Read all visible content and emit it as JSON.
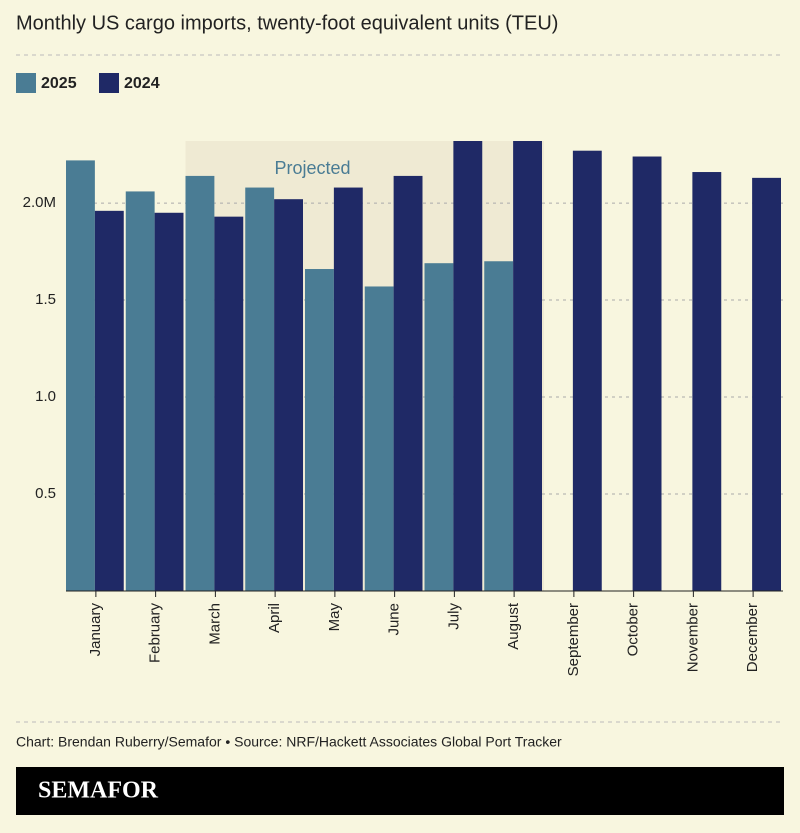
{
  "chart_data": {
    "type": "bar",
    "title": "Monthly US cargo imports, twenty-foot equivalent units (TEU)",
    "categories": [
      "January",
      "February",
      "March",
      "April",
      "May",
      "June",
      "July",
      "August",
      "September",
      "October",
      "November",
      "December"
    ],
    "series": [
      {
        "name": "2025",
        "color": "#4a7c94",
        "values": [
          2.22,
          2.06,
          2.14,
          2.08,
          1.66,
          1.57,
          1.69,
          1.7,
          null,
          null,
          null,
          null
        ]
      },
      {
        "name": "2024",
        "color": "#1f2966",
        "values": [
          1.96,
          1.95,
          1.93,
          2.02,
          2.08,
          2.14,
          2.32,
          2.32,
          2.27,
          2.24,
          2.16,
          2.13
        ]
      }
    ],
    "annotation": "Projected",
    "ylim": [
      0,
      2.32
    ],
    "yticks": [
      0.5,
      {
        "value": 1,
        "label": "1.0"
      },
      1.5,
      {
        "value": 2,
        "label": "2.0M"
      }
    ],
    "grid": true,
    "credit": "Chart: Brendan Ruberry/Semafor • Source: NRF/Hackett Associates Global Port Tracker",
    "brand": "SEMAFOR"
  }
}
